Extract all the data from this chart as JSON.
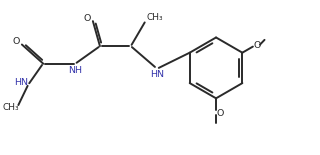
{
  "bg_color": "#ffffff",
  "line_color": "#2a2a2a",
  "nh_color": "#3333aa",
  "lw": 1.4,
  "figsize": [
    3.2,
    1.55
  ],
  "dpi": 100,
  "xlim": [
    0,
    10.0
  ],
  "ylim": [
    0,
    4.84
  ]
}
